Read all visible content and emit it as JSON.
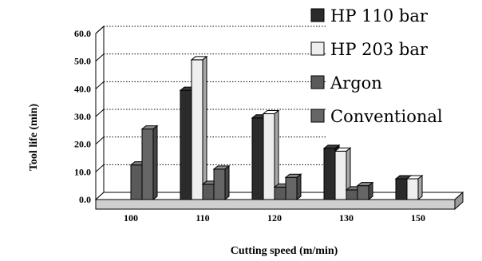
{
  "chart_data": {
    "type": "bar",
    "title": "",
    "xlabel": "Cutting speed (m/min)",
    "ylabel": "Tool life (min)",
    "categories": [
      "100",
      "110",
      "120",
      "130",
      "150"
    ],
    "ylim": [
      0,
      60
    ],
    "yticks": [
      "0.0",
      "10.0",
      "20.0",
      "30.0",
      "40.0",
      "50.0",
      "60.0"
    ],
    "grid": "horizontal dotted",
    "legend_position": "right",
    "series": [
      {
        "name": "HP 110 bar",
        "color": "#2b2b2b",
        "values": [
          null,
          39.5,
          29.5,
          18.5,
          7.5
        ]
      },
      {
        "name": "HP 203 bar",
        "color": "#eeeeee",
        "values": [
          null,
          50.5,
          31.0,
          17.5,
          7.5
        ]
      },
      {
        "name": "Argon",
        "color": "#5a5a5a",
        "values": [
          12.5,
          5.5,
          4.5,
          3.5,
          null
        ]
      },
      {
        "name": "Conventional",
        "color": "#666666",
        "values": [
          25.5,
          11.0,
          8.0,
          5.0,
          null
        ]
      }
    ]
  }
}
